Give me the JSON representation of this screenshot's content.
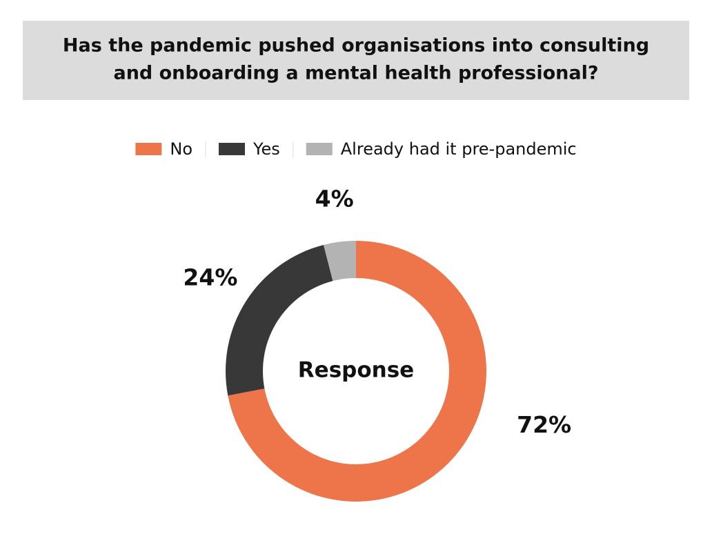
{
  "chart_data": {
    "type": "donut",
    "title": [
      "Has the pandemic pushed organisations into consulting",
      "and onboarding a mental health professional?"
    ],
    "center_label": "Response",
    "categories": [
      "No",
      "Yes",
      "Already had it pre-pandemic"
    ],
    "values": [
      72,
      24,
      4
    ],
    "value_labels": [
      "72%",
      "24%",
      "4%"
    ],
    "colors": [
      "#ee754a",
      "#383838",
      "#b3b3b3"
    ],
    "legend": "top"
  }
}
